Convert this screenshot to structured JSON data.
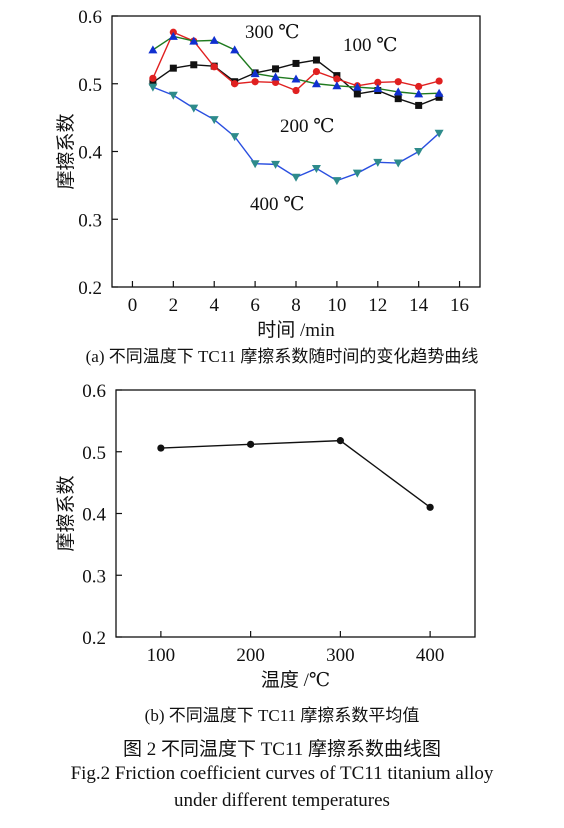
{
  "chart_data": [
    {
      "type": "line",
      "xlabel": "时间 /min",
      "ylabel": "摩擦系数",
      "xlim": [
        -1,
        17
      ],
      "ylim": [
        0.2,
        0.6
      ],
      "xticks": [
        0,
        2,
        4,
        6,
        8,
        10,
        12,
        14,
        16
      ],
      "yticks": [
        0.2,
        0.3,
        0.4,
        0.5,
        0.6
      ],
      "grid": false,
      "x": [
        1,
        2,
        3,
        4,
        5,
        6,
        7,
        8,
        9,
        10,
        11,
        12,
        13,
        14,
        15
      ],
      "series": [
        {
          "name": "100 ℃",
          "color": "#111111",
          "marker": "square",
          "values": [
            0.502,
            0.523,
            0.528,
            0.526,
            0.503,
            0.516,
            0.522,
            0.53,
            0.535,
            0.512,
            0.485,
            0.49,
            0.478,
            0.468,
            0.48
          ]
        },
        {
          "name": "200 ℃",
          "color": "#e02020",
          "marker": "circle",
          "values": [
            0.508,
            0.576,
            0.563,
            0.525,
            0.5,
            0.503,
            0.502,
            0.49,
            0.518,
            0.507,
            0.497,
            0.502,
            0.503,
            0.496,
            0.504
          ]
        },
        {
          "name": "300 ℃",
          "color": "#1f7a1f",
          "marker": "triangle-up",
          "markerColor": "#1030d0",
          "values": [
            0.55,
            0.57,
            0.563,
            0.564,
            0.55,
            0.515,
            0.51,
            0.507,
            0.5,
            0.497,
            0.495,
            0.493,
            0.488,
            0.485,
            0.486
          ]
        },
        {
          "name": "400 ℃",
          "color": "#2a4fe0",
          "marker": "triangle-down",
          "markerColor": "#2e8b8b",
          "values": [
            0.495,
            0.483,
            0.464,
            0.447,
            0.422,
            0.382,
            0.381,
            0.362,
            0.375,
            0.357,
            0.368,
            0.384,
            0.383,
            0.4,
            0.427
          ]
        }
      ],
      "annotations": [
        "300 ℃",
        "100 ℃",
        "200 ℃",
        "400 ℃"
      ]
    },
    {
      "type": "line",
      "xlabel": "温度 /℃",
      "ylabel": "摩擦系数",
      "xlim": [
        50,
        450
      ],
      "ylim": [
        0.2,
        0.6
      ],
      "xticks": [
        100,
        200,
        300,
        400
      ],
      "yticks": [
        0.2,
        0.3,
        0.4,
        0.5,
        0.6
      ],
      "grid": false,
      "x": [
        100,
        200,
        300,
        400
      ],
      "series": [
        {
          "color": "#111111",
          "marker": "circle",
          "values": [
            0.506,
            0.512,
            0.518,
            0.41
          ]
        }
      ]
    }
  ],
  "captions": {
    "a": "(a) 不同温度下 TC11 摩擦系数随时间的变化趋势曲线",
    "b": "(b) 不同温度下 TC11 摩擦系数平均值",
    "figure_title": "图 2   不同温度下 TC11 摩擦系数曲线图",
    "figure_en_1": "Fig.2   Friction coefficient curves of TC11 titanium alloy",
    "figure_en_2": "under different temperatures"
  }
}
